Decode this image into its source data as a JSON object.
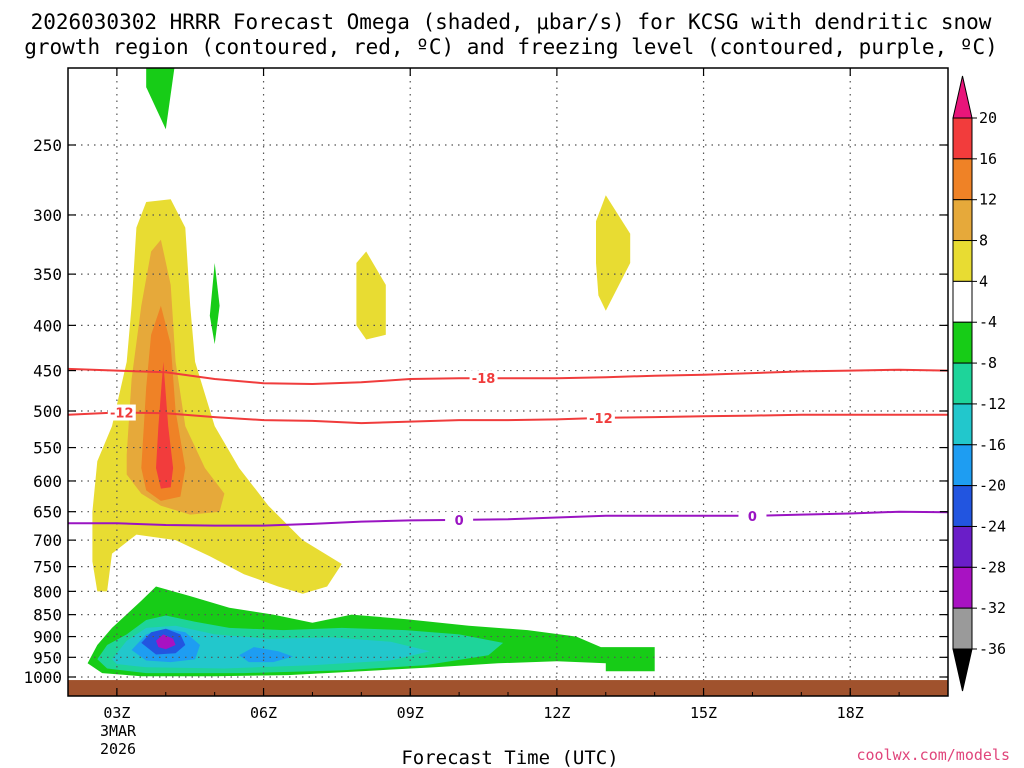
{
  "chart_data": {
    "type": "time-height cross section",
    "title_line1": "2026030302 HRRR Forecast Omega (shaded, μbar/s) for KCSG with dendritic snow",
    "title_line2": "growth region (contoured, red, ºC) and freezing level (contoured, purple, ºC)",
    "xlabel": "Forecast Time (UTC)",
    "x_date_line1": "3MAR",
    "x_date_line2": "2026",
    "credit": "coolwx.com/models",
    "x_range_hours": [
      2,
      20
    ],
    "y_range_hpa": [
      1025,
      200
    ],
    "x_ticks": [
      {
        "hour": 3,
        "label": "03Z"
      },
      {
        "hour": 6,
        "label": "06Z"
      },
      {
        "hour": 9,
        "label": "09Z"
      },
      {
        "hour": 12,
        "label": "12Z"
      },
      {
        "hour": 15,
        "label": "15Z"
      },
      {
        "hour": 18,
        "label": "18Z"
      }
    ],
    "y_ticks": [
      {
        "p": 250,
        "label": "250"
      },
      {
        "p": 300,
        "label": "300"
      },
      {
        "p": 350,
        "label": "350"
      },
      {
        "p": 400,
        "label": "400"
      },
      {
        "p": 450,
        "label": "450"
      },
      {
        "p": 500,
        "label": "500"
      },
      {
        "p": 550,
        "label": "550"
      },
      {
        "p": 600,
        "label": "600"
      },
      {
        "p": 650,
        "label": "650"
      },
      {
        "p": 700,
        "label": "700"
      },
      {
        "p": 750,
        "label": "750"
      },
      {
        "p": 800,
        "label": "800"
      },
      {
        "p": 850,
        "label": "850"
      },
      {
        "p": 900,
        "label": "900"
      },
      {
        "p": 950,
        "label": "950"
      },
      {
        "p": 1000,
        "label": "1000"
      }
    ],
    "colorbar": {
      "levels": [
        "20",
        "16",
        "12",
        "8",
        "4",
        "-4",
        "-8",
        "-12",
        "-16",
        "-20",
        "-24",
        "-28",
        "-32",
        "-36"
      ],
      "top_arrow_color": "#e8157a",
      "bottom_arrow_color": "#000000",
      "bins": [
        {
          "range": "16 to 20",
          "color": "#f23c3c"
        },
        {
          "range": "12 to 16",
          "color": "#ef8226"
        },
        {
          "range": "8 to 12",
          "color": "#e6a93a"
        },
        {
          "range": "4 to 8",
          "color": "#e8dc32"
        },
        {
          "range": "-4 to 4",
          "color": "#ffffff"
        },
        {
          "range": "-8 to -4",
          "color": "#17cc17"
        },
        {
          "range": "-12 to -8",
          "color": "#1ed49a"
        },
        {
          "range": "-16 to -12",
          "color": "#22c7cc"
        },
        {
          "range": "-20 to -16",
          "color": "#1e9df2"
        },
        {
          "range": "-24 to -20",
          "color": "#2255e0"
        },
        {
          "range": "-28 to -24",
          "color": "#6a1ec8"
        },
        {
          "range": "-32 to -28",
          "color": "#a812c2"
        },
        {
          "range": "-36 to -32",
          "color": "#9a9a9a"
        }
      ]
    },
    "ground_color": "#a0522d",
    "ground_top_hpa": 1008,
    "omega_regions": [
      {
        "name": "upper-green-blob",
        "color": "#17cc17",
        "points": [
          [
            3.6,
            200
          ],
          [
            4.2,
            200
          ],
          [
            4.0,
            240
          ],
          [
            3.6,
            215
          ]
        ]
      },
      {
        "name": "main-yellow-plume",
        "color": "#e8dc32",
        "points": [
          [
            2.6,
            800
          ],
          [
            2.5,
            740
          ],
          [
            2.5,
            650
          ],
          [
            2.6,
            570
          ],
          [
            2.9,
            520
          ],
          [
            3.2,
            440
          ],
          [
            3.3,
            380
          ],
          [
            3.4,
            310
          ],
          [
            3.6,
            290
          ],
          [
            4.1,
            288
          ],
          [
            4.4,
            310
          ],
          [
            4.5,
            380
          ],
          [
            4.6,
            440
          ],
          [
            5.0,
            520
          ],
          [
            5.5,
            580
          ],
          [
            6.1,
            640
          ],
          [
            6.8,
            700
          ],
          [
            7.6,
            745
          ],
          [
            7.3,
            790
          ],
          [
            6.8,
            805
          ],
          [
            6.3,
            790
          ],
          [
            5.6,
            765
          ],
          [
            4.9,
            730
          ],
          [
            4.2,
            700
          ],
          [
            3.4,
            690
          ],
          [
            2.9,
            725
          ],
          [
            2.8,
            800
          ]
        ]
      },
      {
        "name": "main-orange-core",
        "color": "#e6a93a",
        "points": [
          [
            3.2,
            560
          ],
          [
            3.3,
            460
          ],
          [
            3.5,
            380
          ],
          [
            3.7,
            330
          ],
          [
            3.9,
            320
          ],
          [
            4.1,
            360
          ],
          [
            4.2,
            440
          ],
          [
            4.4,
            520
          ],
          [
            4.8,
            580
          ],
          [
            5.2,
            620
          ],
          [
            5.1,
            650
          ],
          [
            4.5,
            655
          ],
          [
            3.9,
            640
          ],
          [
            3.5,
            620
          ],
          [
            3.2,
            590
          ]
        ]
      },
      {
        "name": "main-dark-orange-core",
        "color": "#ef8226",
        "points": [
          [
            3.5,
            580
          ],
          [
            3.6,
            470
          ],
          [
            3.7,
            410
          ],
          [
            3.9,
            380
          ],
          [
            4.1,
            420
          ],
          [
            4.2,
            500
          ],
          [
            4.4,
            580
          ],
          [
            4.3,
            625
          ],
          [
            3.9,
            632
          ],
          [
            3.6,
            615
          ]
        ]
      },
      {
        "name": "main-red-core",
        "color": "#f23c3c",
        "points": [
          [
            3.8,
            580
          ],
          [
            3.85,
            520
          ],
          [
            3.95,
            440
          ],
          [
            4.05,
            520
          ],
          [
            4.15,
            580
          ],
          [
            4.1,
            610
          ],
          [
            3.9,
            612
          ]
        ]
      },
      {
        "name": "small-green-sliver",
        "color": "#17cc17",
        "points": [
          [
            4.9,
            390
          ],
          [
            5.0,
            340
          ],
          [
            5.1,
            380
          ],
          [
            5.0,
            420
          ]
        ]
      },
      {
        "name": "yellow-blob-08z",
        "color": "#e8dc32",
        "points": [
          [
            7.9,
            400
          ],
          [
            7.9,
            340
          ],
          [
            8.1,
            330
          ],
          [
            8.5,
            360
          ],
          [
            8.5,
            410
          ],
          [
            8.1,
            415
          ]
        ]
      },
      {
        "name": "yellow-blob-13z",
        "color": "#e8dc32",
        "points": [
          [
            12.8,
            340
          ],
          [
            12.8,
            305
          ],
          [
            13.0,
            285
          ],
          [
            13.5,
            315
          ],
          [
            13.5,
            340
          ],
          [
            13.0,
            385
          ],
          [
            12.85,
            370
          ]
        ]
      },
      {
        "name": "low-level-green",
        "color": "#17cc17",
        "points": [
          [
            2.4,
            965
          ],
          [
            2.6,
            920
          ],
          [
            2.9,
            880
          ],
          [
            3.5,
            820
          ],
          [
            3.8,
            790
          ],
          [
            4.5,
            810
          ],
          [
            5.3,
            835
          ],
          [
            6.2,
            850
          ],
          [
            7.0,
            868
          ],
          [
            7.8,
            850
          ],
          [
            8.9,
            860
          ],
          [
            10.2,
            875
          ],
          [
            11.4,
            885
          ],
          [
            12.4,
            900
          ],
          [
            12.9,
            925
          ],
          [
            12.9,
            925
          ],
          [
            14.0,
            925
          ],
          [
            14.0,
            985
          ],
          [
            13.0,
            985
          ],
          [
            13.0,
            965
          ],
          [
            12.0,
            960
          ],
          [
            10.8,
            965
          ],
          [
            9.5,
            975
          ],
          [
            8.0,
            985
          ],
          [
            6.5,
            995
          ],
          [
            5.0,
            998
          ],
          [
            3.5,
            998
          ],
          [
            2.7,
            990
          ]
        ]
      },
      {
        "name": "low-level-turquoise",
        "color": "#1ed49a",
        "points": [
          [
            2.6,
            955
          ],
          [
            2.8,
            920
          ],
          [
            3.2,
            895
          ],
          [
            3.6,
            862
          ],
          [
            4.0,
            852
          ],
          [
            4.6,
            866
          ],
          [
            5.3,
            880
          ],
          [
            6.4,
            885
          ],
          [
            7.6,
            880
          ],
          [
            8.9,
            885
          ],
          [
            10.0,
            895
          ],
          [
            10.9,
            915
          ],
          [
            10.6,
            945
          ],
          [
            9.3,
            970
          ],
          [
            7.6,
            983
          ],
          [
            5.6,
            990
          ],
          [
            3.6,
            990
          ],
          [
            2.8,
            978
          ]
        ]
      },
      {
        "name": "low-level-cyan",
        "color": "#22c7cc",
        "points": [
          [
            2.9,
            955
          ],
          [
            3.2,
            910
          ],
          [
            3.6,
            880
          ],
          [
            4.2,
            875
          ],
          [
            5.0,
            895
          ],
          [
            6.1,
            905
          ],
          [
            7.4,
            902
          ],
          [
            8.6,
            912
          ],
          [
            9.4,
            935
          ],
          [
            8.6,
            958
          ],
          [
            7.0,
            970
          ],
          [
            5.2,
            978
          ],
          [
            3.6,
            975
          ],
          [
            3.0,
            967
          ]
        ]
      },
      {
        "name": "low-level-blue",
        "color": "#1e9df2",
        "points": [
          [
            3.3,
            932
          ],
          [
            3.6,
            895
          ],
          [
            4.0,
            882
          ],
          [
            4.4,
            890
          ],
          [
            4.7,
            920
          ],
          [
            4.6,
            955
          ],
          [
            4.1,
            962
          ],
          [
            3.6,
            958
          ]
        ]
      },
      {
        "name": "blue-blob-06z",
        "color": "#1e9df2",
        "points": [
          [
            5.5,
            945
          ],
          [
            5.8,
            925
          ],
          [
            6.3,
            935
          ],
          [
            6.6,
            948
          ],
          [
            6.2,
            962
          ],
          [
            5.7,
            962
          ]
        ]
      },
      {
        "name": "low-level-dark-blue",
        "color": "#2255e0",
        "points": [
          [
            3.5,
            915
          ],
          [
            3.7,
            890
          ],
          [
            4.0,
            882
          ],
          [
            4.3,
            895
          ],
          [
            4.4,
            920
          ],
          [
            4.2,
            940
          ],
          [
            3.8,
            943
          ]
        ]
      },
      {
        "name": "low-level-purple-core",
        "color": "#a812c2",
        "points": [
          [
            3.8,
            910
          ],
          [
            3.95,
            895
          ],
          [
            4.15,
            905
          ],
          [
            4.2,
            920
          ],
          [
            4.0,
            930
          ],
          [
            3.85,
            925
          ]
        ]
      }
    ],
    "contours": [
      {
        "name": "dgz-minus18",
        "label": "-18",
        "kind": "dendritic snow growth",
        "color": "#f03c3c",
        "points": [
          [
            2.0,
            448
          ],
          [
            3.0,
            450
          ],
          [
            4.0,
            452
          ],
          [
            5.0,
            460
          ],
          [
            6.0,
            465
          ],
          [
            7.0,
            466
          ],
          [
            8.0,
            464
          ],
          [
            9.0,
            460
          ],
          [
            10.0,
            459
          ],
          [
            11.0,
            459
          ],
          [
            12.0,
            459
          ],
          [
            13.0,
            458
          ],
          [
            14.0,
            456
          ],
          [
            15.0,
            455
          ],
          [
            16.0,
            453
          ],
          [
            17.0,
            451
          ],
          [
            18.0,
            450
          ],
          [
            19.0,
            449
          ],
          [
            20.0,
            450
          ]
        ],
        "label_positions": [
          [
            10.5,
            459
          ]
        ]
      },
      {
        "name": "dgz-minus12",
        "label": "-12",
        "kind": "dendritic snow growth",
        "color": "#f03c3c",
        "points": [
          [
            2.0,
            505
          ],
          [
            3.0,
            502
          ],
          [
            4.0,
            503
          ],
          [
            5.0,
            508
          ],
          [
            6.0,
            512
          ],
          [
            7.0,
            513
          ],
          [
            8.0,
            516
          ],
          [
            9.0,
            514
          ],
          [
            10.0,
            512
          ],
          [
            11.0,
            512
          ],
          [
            12.0,
            511
          ],
          [
            13.0,
            509
          ],
          [
            14.0,
            508
          ],
          [
            15.0,
            507
          ],
          [
            16.0,
            506
          ],
          [
            17.0,
            505
          ],
          [
            18.0,
            505
          ],
          [
            19.0,
            505
          ],
          [
            20.0,
            505
          ]
        ],
        "label_positions": [
          [
            3.1,
            502
          ],
          [
            12.9,
            509
          ]
        ]
      },
      {
        "name": "freezing-level-0",
        "label": "0",
        "kind": "freezing level",
        "color": "#9a14c2",
        "points": [
          [
            2.0,
            670
          ],
          [
            3.0,
            670
          ],
          [
            4.0,
            673
          ],
          [
            5.0,
            674
          ],
          [
            6.0,
            674
          ],
          [
            7.0,
            671
          ],
          [
            8.0,
            667
          ],
          [
            9.0,
            665
          ],
          [
            10.0,
            664
          ],
          [
            11.0,
            663
          ],
          [
            12.0,
            660
          ],
          [
            13.0,
            657
          ],
          [
            14.0,
            657
          ],
          [
            15.0,
            657
          ],
          [
            16.0,
            657
          ],
          [
            17.0,
            655
          ],
          [
            18.0,
            653
          ],
          [
            19.0,
            650
          ],
          [
            20.0,
            651
          ]
        ],
        "label_positions": [
          [
            10.0,
            664
          ],
          [
            16.0,
            657
          ]
        ]
      }
    ]
  }
}
